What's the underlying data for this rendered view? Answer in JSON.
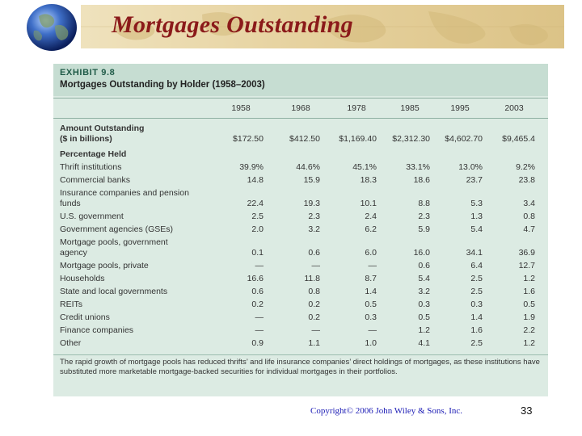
{
  "slide": {
    "title": "Mortgages Outstanding",
    "copyright": "Copyright© 2006 John Wiley & Sons, Inc.",
    "page_number": "33"
  },
  "colors": {
    "title": "#8b1a1a",
    "exhibit_bg": "#dcebe3",
    "exhibit_head": "#c6ddd2",
    "copyright": "#1b1bb5"
  },
  "exhibit": {
    "label": "EXHIBIT 9.8",
    "title": "Mortgages Outstanding by Holder (1958–2003)",
    "years": [
      "1958",
      "1968",
      "1978",
      "1985",
      "1995",
      "2003"
    ],
    "amount_label_1": "Amount Outstanding",
    "amount_label_2": "($ in billions)",
    "amounts": [
      "$172.50",
      "$412.50",
      "$1,169.40",
      "$2,312.30",
      "$4,602.70",
      "$9,465.4"
    ],
    "percentage_label": "Percentage Held",
    "rows": [
      {
        "label": [
          "Thrift institutions"
        ],
        "values": [
          "39.9%",
          "44.6%",
          "45.1%",
          "33.1%",
          "13.0%",
          "9.2%"
        ]
      },
      {
        "label": [
          "Commercial banks"
        ],
        "values": [
          "14.8",
          "15.9",
          "18.3",
          "18.6",
          "23.7",
          "23.8"
        ]
      },
      {
        "label": [
          "Insurance companies and pension",
          "funds"
        ],
        "values": [
          "22.4",
          "19.3",
          "10.1",
          "8.8",
          "5.3",
          "3.4"
        ]
      },
      {
        "label": [
          "U.S. government"
        ],
        "values": [
          "2.5",
          "2.3",
          "2.4",
          "2.3",
          "1.3",
          "0.8"
        ]
      },
      {
        "label": [
          "Government agencies (GSEs)"
        ],
        "values": [
          "2.0",
          "3.2",
          "6.2",
          "5.9",
          "5.4",
          "4.7"
        ]
      },
      {
        "label": [
          "Mortgage pools, government",
          "agency"
        ],
        "values": [
          "0.1",
          "0.6",
          "6.0",
          "16.0",
          "34.1",
          "36.9"
        ]
      },
      {
        "label": [
          "Mortgage pools, private"
        ],
        "values": [
          "—",
          "—",
          "—",
          "0.6",
          "6.4",
          "12.7"
        ]
      },
      {
        "label": [
          "Households"
        ],
        "values": [
          "16.6",
          "11.8",
          "8.7",
          "5.4",
          "2.5",
          "1.2"
        ]
      },
      {
        "label": [
          "State and local governments"
        ],
        "values": [
          "0.6",
          "0.8",
          "1.4",
          "3.2",
          "2.5",
          "1.6"
        ]
      },
      {
        "label": [
          "REITs"
        ],
        "values": [
          "0.2",
          "0.2",
          "0.5",
          "0.3",
          "0.3",
          "0.5"
        ]
      },
      {
        "label": [
          "Credit unions"
        ],
        "values": [
          "—",
          "0.2",
          "0.3",
          "0.5",
          "1.4",
          "1.9"
        ]
      },
      {
        "label": [
          "Finance companies"
        ],
        "values": [
          "—",
          "—",
          "—",
          "1.2",
          "1.6",
          "2.2"
        ]
      },
      {
        "label": [
          "Other"
        ],
        "values": [
          "0.9",
          "1.1",
          "1.0",
          "4.1",
          "2.5",
          "1.2"
        ]
      }
    ],
    "footnote": "The rapid growth of mortgage pools has reduced thrifts’ and life insurance companies’ direct holdings of mortgages, as these institutions have substituted more marketable mortgage-backed securities for individual mortgages in their portfolios."
  }
}
